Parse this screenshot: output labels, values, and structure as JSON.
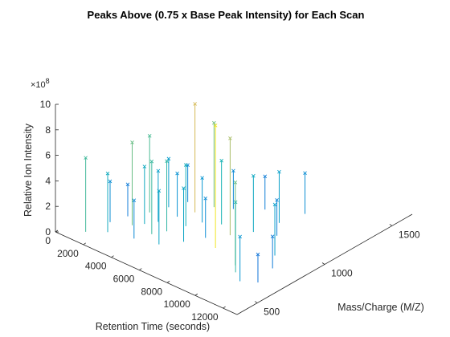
{
  "chart_data": {
    "type": "scatter",
    "title": "Peaks Above (0.75 x Base Peak Intensity) for Each Scan",
    "xlabel": "Retention Time (seconds)",
    "ylabel": "Mass/Charge (M/Z)",
    "zlabel": "Relative Ion Intensity",
    "z_exponent_label": "×10",
    "z_exponent_power": "8",
    "xlim": [
      0,
      13000
    ],
    "ylim": [
      350,
      1650
    ],
    "zlim": [
      0,
      10
    ],
    "xticks": [
      "0",
      "2000",
      "4000",
      "6000",
      "8000",
      "10000",
      "12000"
    ],
    "yticks": [
      "500",
      "1000",
      "1500"
    ],
    "zticks": [
      "0",
      "2",
      "4",
      "6",
      "8",
      "10"
    ],
    "grid": false,
    "colormap": "parula",
    "marker": "x",
    "series": [
      {
        "values": [
          [
            1200,
            450,
            5.8
          ],
          [
            1500,
            600,
            3.2
          ],
          [
            1800,
            700,
            2.5
          ],
          [
            2100,
            520,
            4.6
          ],
          [
            2400,
            800,
            6.0
          ],
          [
            2600,
            650,
            6.5
          ],
          [
            2800,
            900,
            3.8
          ],
          [
            3000,
            700,
            4.5
          ],
          [
            3200,
            1000,
            2.9
          ],
          [
            3400,
            760,
            4.0
          ],
          [
            3600,
            560,
            3.0
          ],
          [
            3800,
            860,
            3.4
          ],
          [
            4000,
            650,
            5.7
          ],
          [
            4200,
            950,
            8.5
          ],
          [
            4400,
            720,
            5.5
          ],
          [
            4600,
            1050,
            6.6
          ],
          [
            4800,
            820,
            4.8
          ],
          [
            5000,
            600,
            4.2
          ],
          [
            5200,
            900,
            3.5
          ],
          [
            5500,
            1100,
            3.0
          ],
          [
            5800,
            700,
            4.2
          ],
          [
            6100,
            950,
            5.0
          ],
          [
            6400,
            800,
            3.1
          ],
          [
            6800,
            1200,
            2.6
          ],
          [
            7200,
            900,
            7.6
          ],
          [
            7500,
            760,
            9.6
          ],
          [
            7900,
            1000,
            4.4
          ],
          [
            8300,
            1150,
            4.0
          ],
          [
            8700,
            1300,
            3.2
          ],
          [
            9100,
            1050,
            2.8
          ],
          [
            9500,
            700,
            6.5
          ],
          [
            10000,
            650,
            5.5
          ],
          [
            10400,
            900,
            4.0
          ],
          [
            10800,
            600,
            3.5
          ],
          [
            11200,
            800,
            2.5
          ],
          [
            11600,
            650,
            2.2
          ]
        ]
      }
    ]
  }
}
